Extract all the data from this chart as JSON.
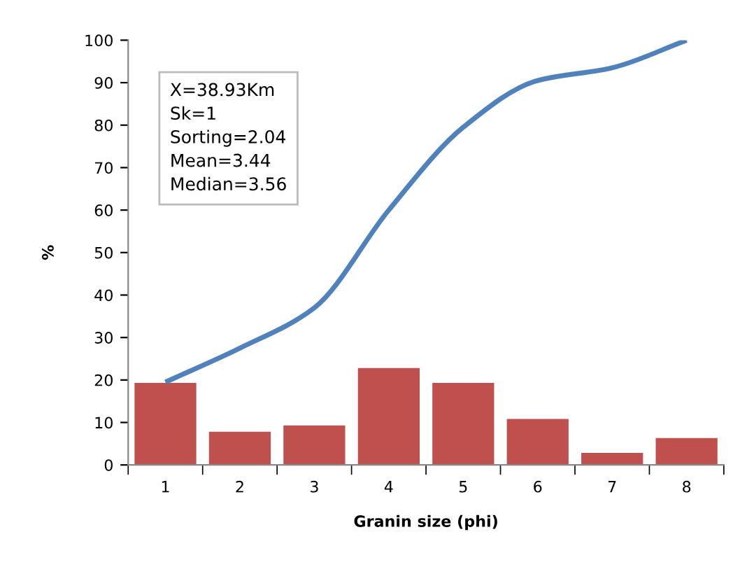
{
  "chart_data": {
    "type": "bar",
    "xlabel": "Granin size (phi)",
    "ylabel": "%",
    "categories": [
      "1",
      "2",
      "3",
      "4",
      "5",
      "6",
      "7",
      "8"
    ],
    "series": [
      {
        "color": "#c0504d",
        "values": [
          19.5,
          8,
          9.5,
          23,
          19.5,
          11,
          3,
          6.5
        ]
      },
      {
        "type": "line",
        "color": "#4f81bd",
        "values": [
          19.5,
          27.5,
          37,
          60,
          79.5,
          90.5,
          93.5,
          100
        ],
        "marker": "none",
        "line_style": "solid"
      }
    ],
    "ylim": [
      0,
      100
    ],
    "yticks": [
      0,
      10,
      20,
      30,
      40,
      50,
      60,
      70,
      80,
      90,
      100
    ],
    "grid": false,
    "legend": false,
    "annotations": [
      "X=38.93Km\nSk=1\nSorting=2.04\nMean=3.44\nMedian=3.56"
    ]
  }
}
